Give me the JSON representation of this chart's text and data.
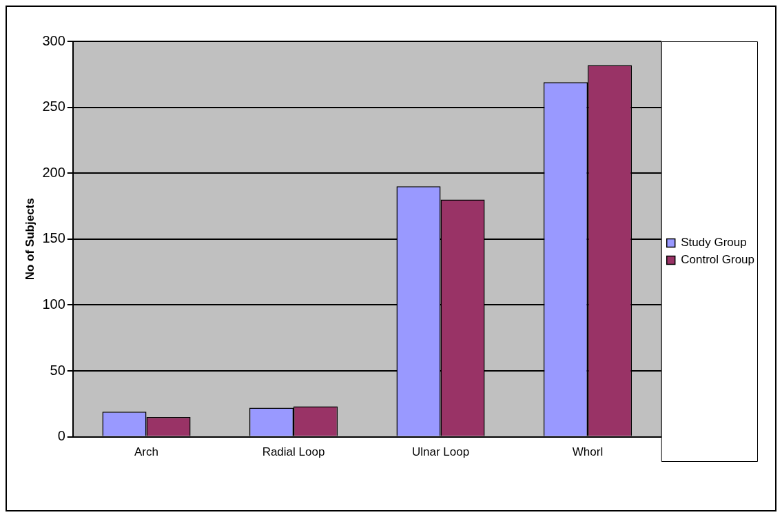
{
  "chart_data": {
    "type": "bar",
    "ylabel": "No of Subjects",
    "categories": [
      "Arch",
      "Radial Loop",
      "Ulnar Loop",
      "Whorl"
    ],
    "series": [
      {
        "name": "Study Group",
        "color": "#9999ff",
        "values": [
          19,
          22,
          190,
          269
        ]
      },
      {
        "name": "Control Group",
        "color": "#993366",
        "values": [
          15,
          23,
          180,
          282
        ]
      }
    ],
    "ylim": [
      0,
      300
    ],
    "yticks": [
      0,
      50,
      100,
      150,
      200,
      250,
      300
    ],
    "grid": "y",
    "legend": "right"
  }
}
